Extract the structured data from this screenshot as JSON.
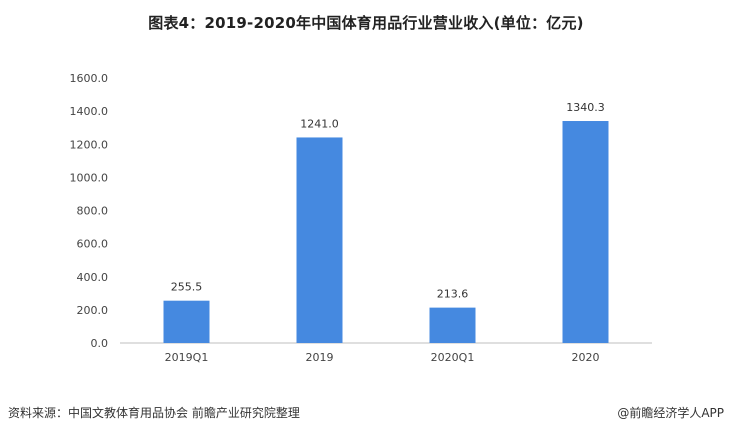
{
  "title": "图表4：2019-2020年中国体育用品行业营业收入(单位：亿元)",
  "source_text": "资料来源：中国文教体育用品协会 前瞻产业研究院整理",
  "brand_text": "@前瞻经济学人APP",
  "colors": {
    "bar": "#4589e0",
    "axis": "#bfbfbf",
    "text": "#444444"
  },
  "chart_data": {
    "type": "bar",
    "title": "图表4：2019-2020年中国体育用品行业营业收入(单位：亿元)",
    "categories": [
      "2019Q1",
      "2019",
      "2020Q1",
      "2020"
    ],
    "values": [
      255.5,
      1241.0,
      213.6,
      1340.3
    ],
    "value_labels": [
      "255.5",
      "1241.0",
      "213.6",
      "1340.3"
    ],
    "ylim": [
      0,
      1600
    ],
    "yticks": [
      "0.0",
      "200.0",
      "400.0",
      "600.0",
      "800.0",
      "1000.0",
      "1200.0",
      "1400.0",
      "1600.0"
    ],
    "xlabel": "",
    "ylabel": "",
    "grid": false,
    "legend": "none"
  }
}
